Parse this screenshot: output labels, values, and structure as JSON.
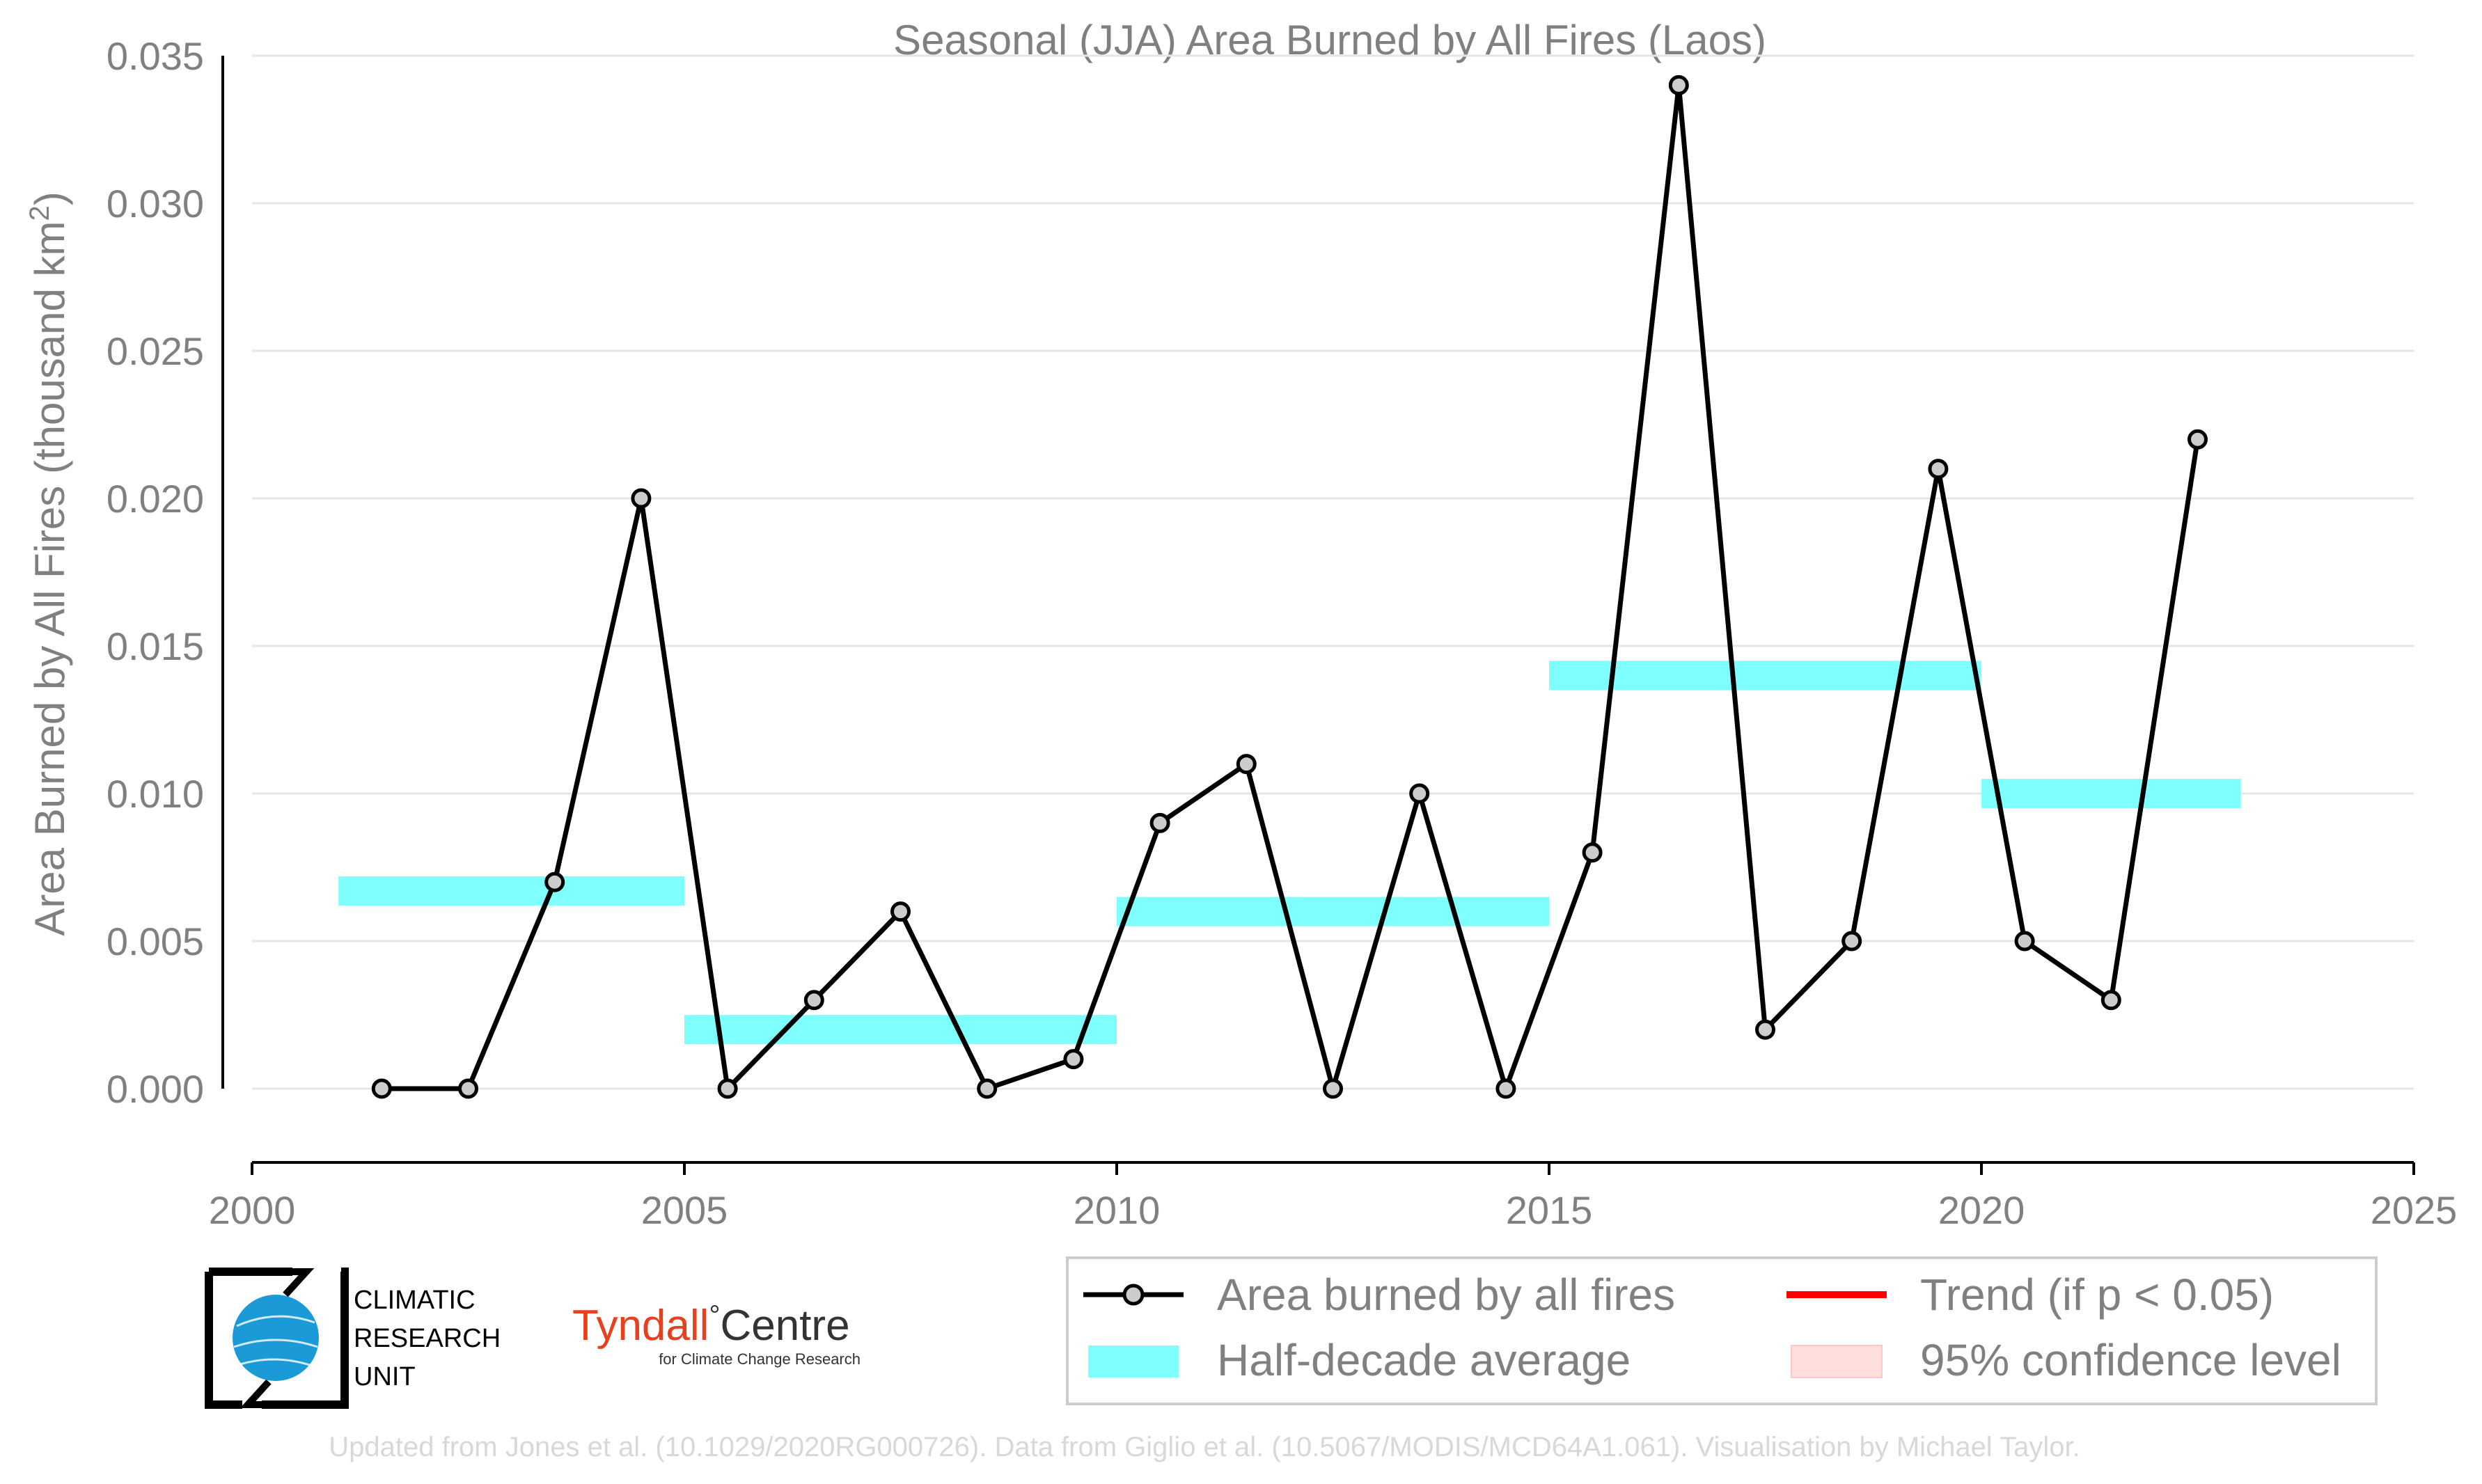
{
  "chart_data": {
    "type": "line",
    "title": "Seasonal (JJA) Area Burned by All Fires (Laos)",
    "ylabel_main": "Area Burned by All Fires (thousand km",
    "ylabel_sup": "2",
    "ylabel_close": ")",
    "xlim": [
      2000,
      2025
    ],
    "ylim": [
      -0.0025,
      0.035
    ],
    "x_ticks": [
      2000,
      2005,
      2010,
      2015,
      2020,
      2025
    ],
    "y_ticks": [
      "0.000",
      "0.005",
      "0.010",
      "0.015",
      "0.020",
      "0.025",
      "0.030",
      "0.035"
    ],
    "grid": "horizontal",
    "series": [
      {
        "name": "Area burned by all fires",
        "color": "#000000",
        "marker_fill": "#cccccc",
        "x": [
          2001.5,
          2002.5,
          2003.5,
          2004.5,
          2005.5,
          2006.5,
          2007.5,
          2008.5,
          2009.5,
          2010.5,
          2011.5,
          2012.5,
          2013.5,
          2014.5,
          2015.5,
          2016.5,
          2017.5,
          2018.5,
          2019.5,
          2020.5,
          2021.5,
          2022.5
        ],
        "y": [
          0.0,
          0.0,
          0.007,
          0.02,
          0.0,
          0.003,
          0.006,
          0.0,
          0.001,
          0.009,
          0.011,
          0.0,
          0.01,
          0.0,
          0.008,
          0.034,
          0.002,
          0.005,
          0.021,
          0.005,
          0.003,
          0.022
        ]
      }
    ],
    "half_decade_averages": {
      "name": "Half-decade average",
      "color": "#80ffff",
      "segments": [
        {
          "x0": 2001,
          "x1": 2005,
          "y": 0.0067
        },
        {
          "x0": 2005,
          "x1": 2010,
          "y": 0.002
        },
        {
          "x0": 2010,
          "x1": 2015,
          "y": 0.006
        },
        {
          "x0": 2015,
          "x1": 2020,
          "y": 0.014
        },
        {
          "x0": 2020,
          "x1": 2023,
          "y": 0.01
        }
      ]
    },
    "legend": {
      "position": "bottom-right",
      "items": [
        {
          "label": "Area burned by all fires",
          "kind": "line-marker",
          "color": "#000000"
        },
        {
          "label": "Trend (if p < 0.05)",
          "kind": "line",
          "color": "#ff0000"
        },
        {
          "label": "Half-decade average",
          "kind": "band",
          "color": "#80ffff"
        },
        {
          "label": "95% confidence level",
          "kind": "band",
          "color": "#ffdede"
        }
      ]
    }
  },
  "logos": {
    "cru_line1": "CLIMATIC",
    "cru_line2": "RESEARCH",
    "cru_line3": "UNIT",
    "tyndall_main": "Tyndall",
    "tyndall_degree": "°",
    "tyndall_centre": "Centre",
    "tyndall_sub": "for Climate Change Research"
  },
  "credit": "Updated from Jones et al. (10.1029/2020RG000726). Data from Giglio et al. (10.5067/MODIS/MCD64A1.061). Visualisation by Michael Taylor."
}
